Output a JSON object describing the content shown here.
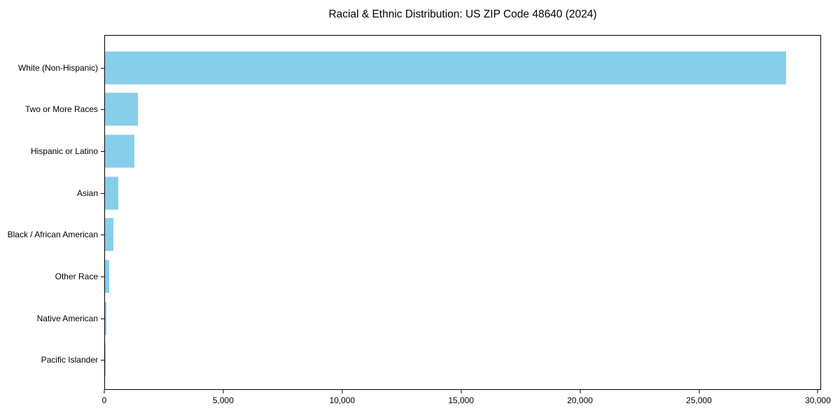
{
  "chart_data": {
    "type": "bar",
    "orientation": "horizontal",
    "title": "Racial & Ethnic Distribution: US ZIP Code 48640 (2024)",
    "categories": [
      "White (Non-Hispanic)",
      "Two or More Races",
      "Hispanic or Latino",
      "Asian",
      "Black / African American",
      "Other Race",
      "Native American",
      "Pacific Islander"
    ],
    "values": [
      28700,
      1390,
      1230,
      550,
      345,
      170,
      45,
      15
    ],
    "bar_color": "#87CEEB",
    "text_color": "#000000",
    "xlabel": "",
    "ylabel": "",
    "xlim": [
      0,
      30135
    ],
    "x_ticks": [
      0,
      5000,
      10000,
      15000,
      20000,
      25000,
      30000
    ],
    "x_tick_labels": [
      "0",
      "5,000",
      "10,000",
      "15,000",
      "20,000",
      "25,000",
      "30,000"
    ],
    "grid": false,
    "legend_position": "none"
  }
}
